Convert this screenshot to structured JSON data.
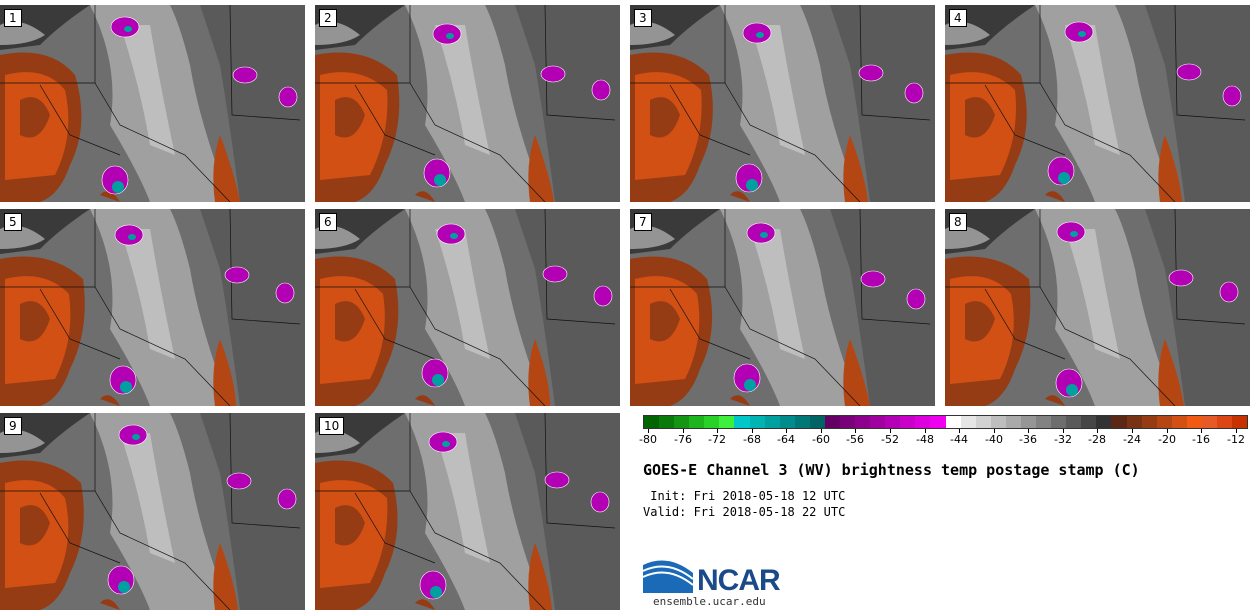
{
  "map": {
    "title": "GOES-E Channel 3 (WV) brightness temp postage stamp (C)",
    "init_label": " Init: Fri 2018-05-18 12 UTC",
    "valid_label": "Valid: Fri 2018-05-18 22 UTC",
    "panels": [
      "1",
      "2",
      "3",
      "4",
      "5",
      "6",
      "7",
      "8",
      "9",
      "10"
    ],
    "colorbar": {
      "tick_labels": [
        "-80",
        "-76",
        "-72",
        "-68",
        "-64",
        "-60",
        "-56",
        "-52",
        "-48",
        "-44",
        "-40",
        "-36",
        "-32",
        "-28",
        "-24",
        "-20",
        "-16",
        "-12"
      ],
      "colors": [
        "#006400",
        "#0a7a0a",
        "#149614",
        "#1eb41e",
        "#28d228",
        "#3cf03c",
        "#00c8c8",
        "#00b4b4",
        "#00a0a0",
        "#008c8c",
        "#007878",
        "#006464",
        "#640064",
        "#780078",
        "#8c008c",
        "#a000a0",
        "#b400b4",
        "#c800c8",
        "#dc00dc",
        "#f000f0",
        "#ffffff",
        "#e6e6e6",
        "#d2d2d2",
        "#bebebe",
        "#aaaaaa",
        "#969696",
        "#828282",
        "#6e6e6e",
        "#5a5a5a",
        "#464646",
        "#323232",
        "#5a2814",
        "#783214",
        "#963c14",
        "#b44614",
        "#d25014",
        "#f05a14",
        "#e65a28",
        "#dc4614",
        "#c83200"
      ]
    }
  },
  "logo": {
    "name": "NCAR",
    "url": "ensemble.ucar.edu"
  }
}
